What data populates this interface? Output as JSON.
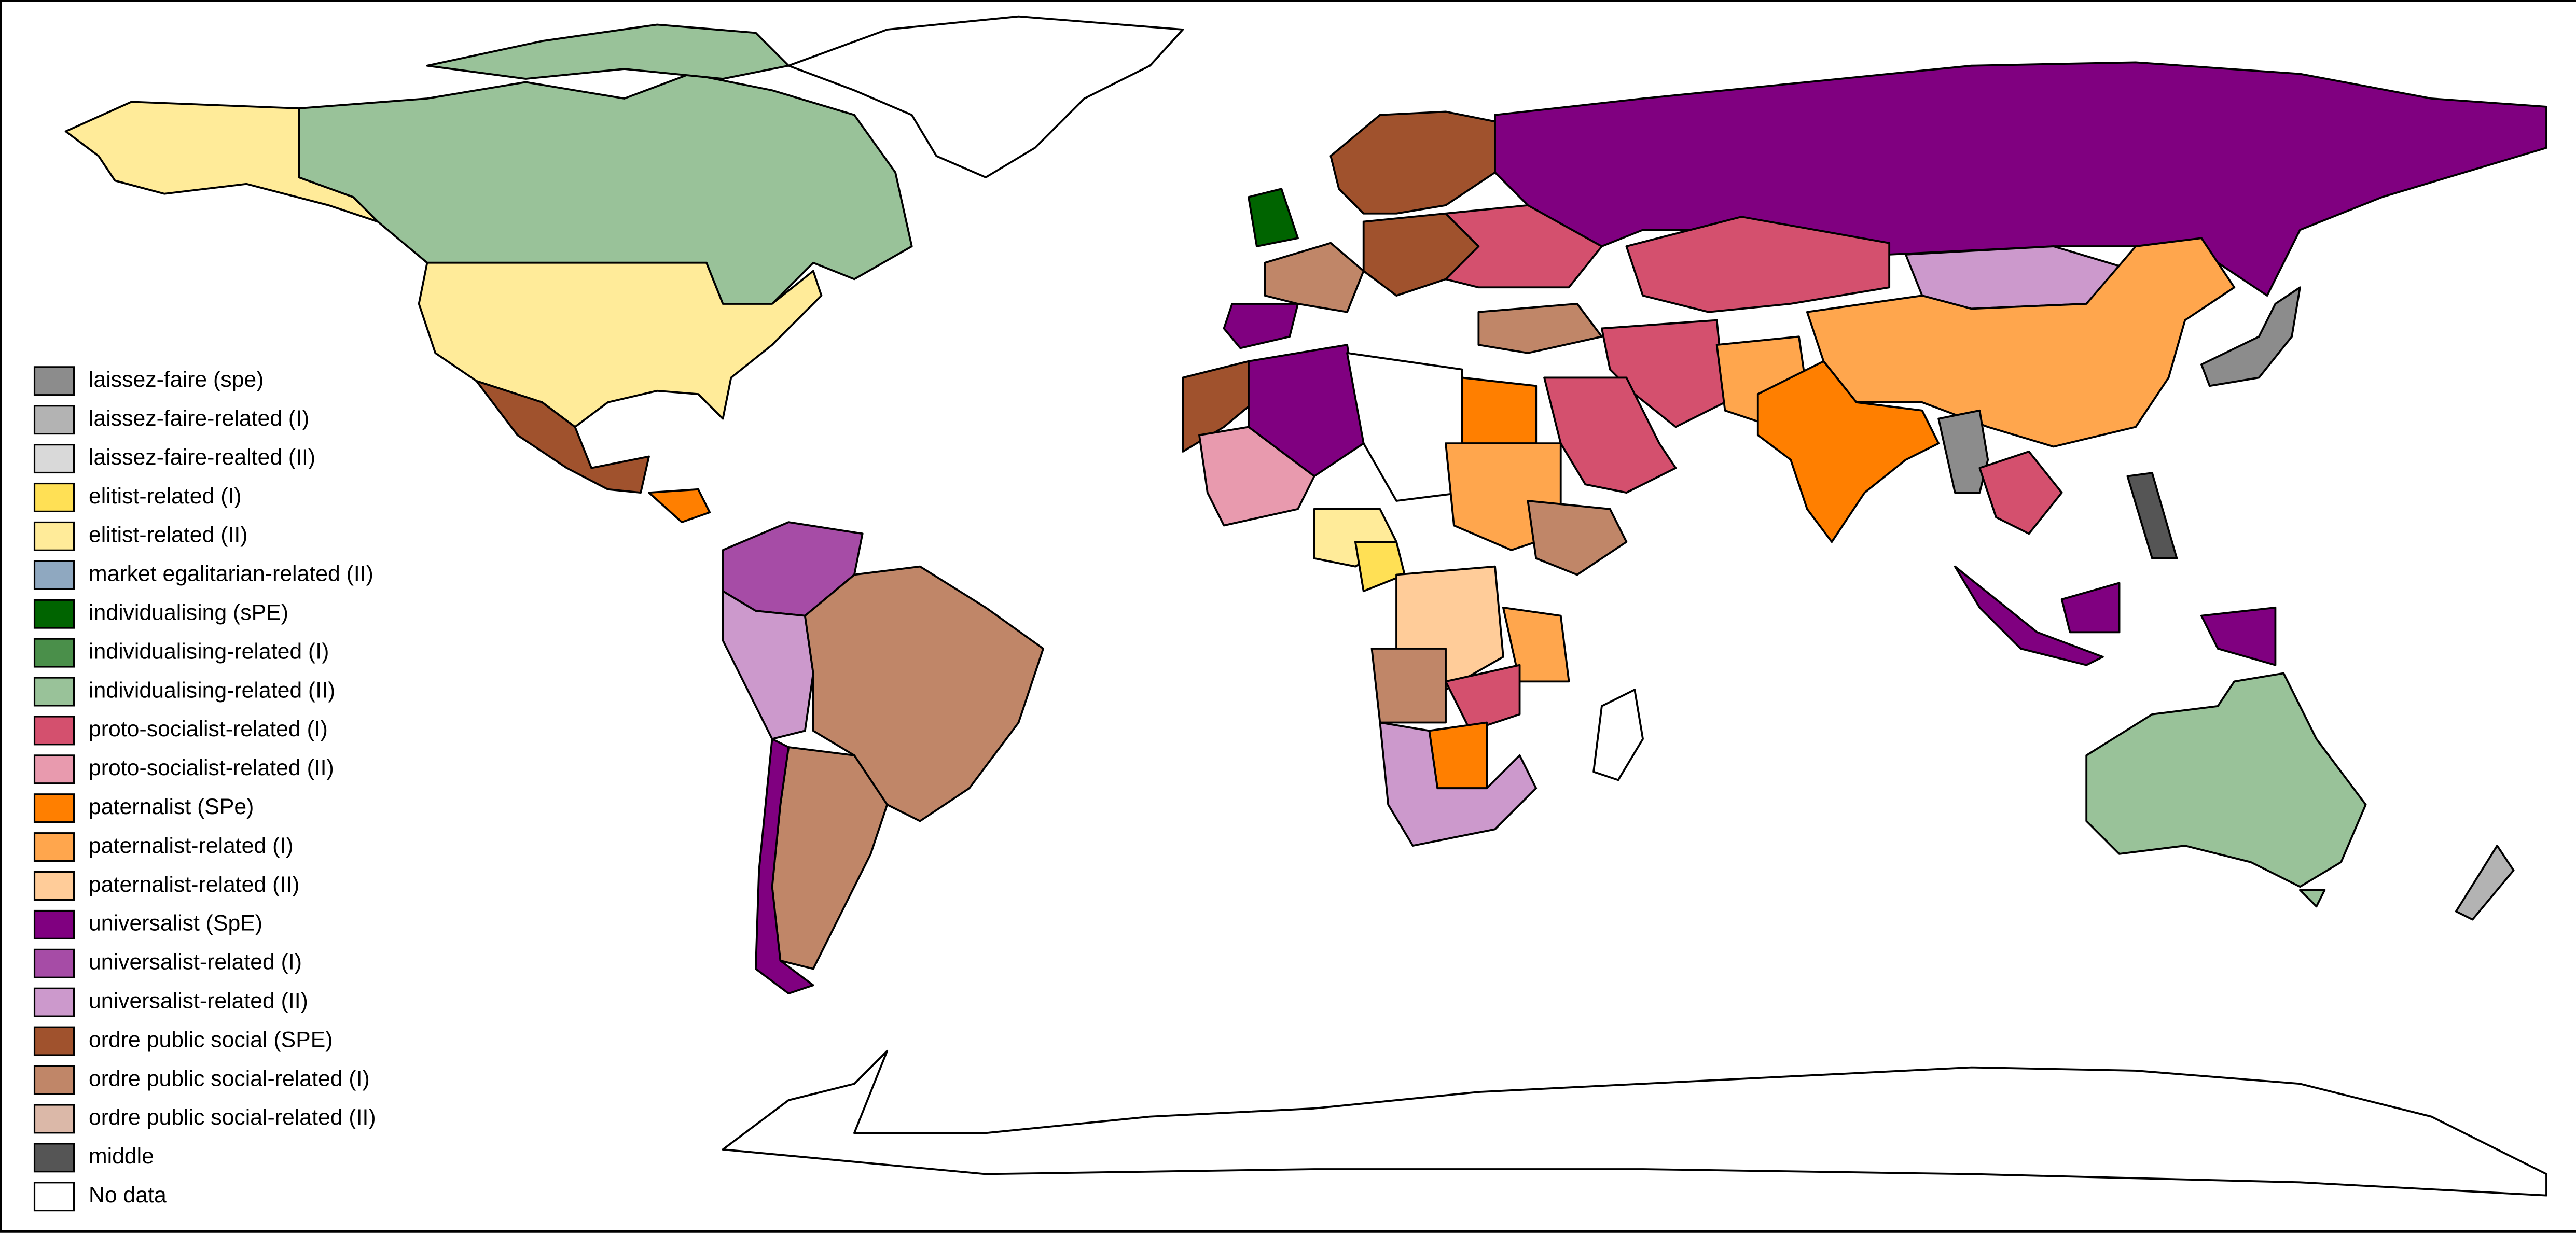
{
  "legend": {
    "items": [
      {
        "label": "laissez-faire (spe)",
        "color": "#8c8c8c"
      },
      {
        "label": "laissez-faire-related (I)",
        "color": "#b3b3b3"
      },
      {
        "label": "laissez-faire-realted (II)",
        "color": "#d9d9d9"
      },
      {
        "label": "elitist-related (I)",
        "color": "#ffe055"
      },
      {
        "label": "elitist-related (II)",
        "color": "#ffeb99"
      },
      {
        "label": "market egalitarian-related (II)",
        "color": "#8fa8c0"
      },
      {
        "label": "individualising (sPE)",
        "color": "#006400"
      },
      {
        "label": "individualising-related (I)",
        "color": "#4a8f4a"
      },
      {
        "label": "individualising-related (II)",
        "color": "#99c299"
      },
      {
        "label": "proto-socialist-related (I)",
        "color": "#d4506e"
      },
      {
        "label": "proto-socialist-related (II)",
        "color": "#e89aae"
      },
      {
        "label": "paternalist (SPe)",
        "color": "#ff7f00"
      },
      {
        "label": "paternalist-related (I)",
        "color": "#ffa64d"
      },
      {
        "label": "paternalist-related (II)",
        "color": "#ffcc99"
      },
      {
        "label": "universalist (SpE)",
        "color": "#800080"
      },
      {
        "label": "universalist-related (I)",
        "color": "#a64ca6"
      },
      {
        "label": "universalist-related (II)",
        "color": "#cc99cc"
      },
      {
        "label": "ordre public social (SPE)",
        "color": "#a0522d"
      },
      {
        "label": "ordre public social-related (I)",
        "color": "#c08668"
      },
      {
        "label": "ordre public social-related (II)",
        "color": "#dbb8a8"
      },
      {
        "label": "middle",
        "color": "#555555"
      },
      {
        "label": "No data",
        "color": "#ffffff"
      }
    ]
  }
}
